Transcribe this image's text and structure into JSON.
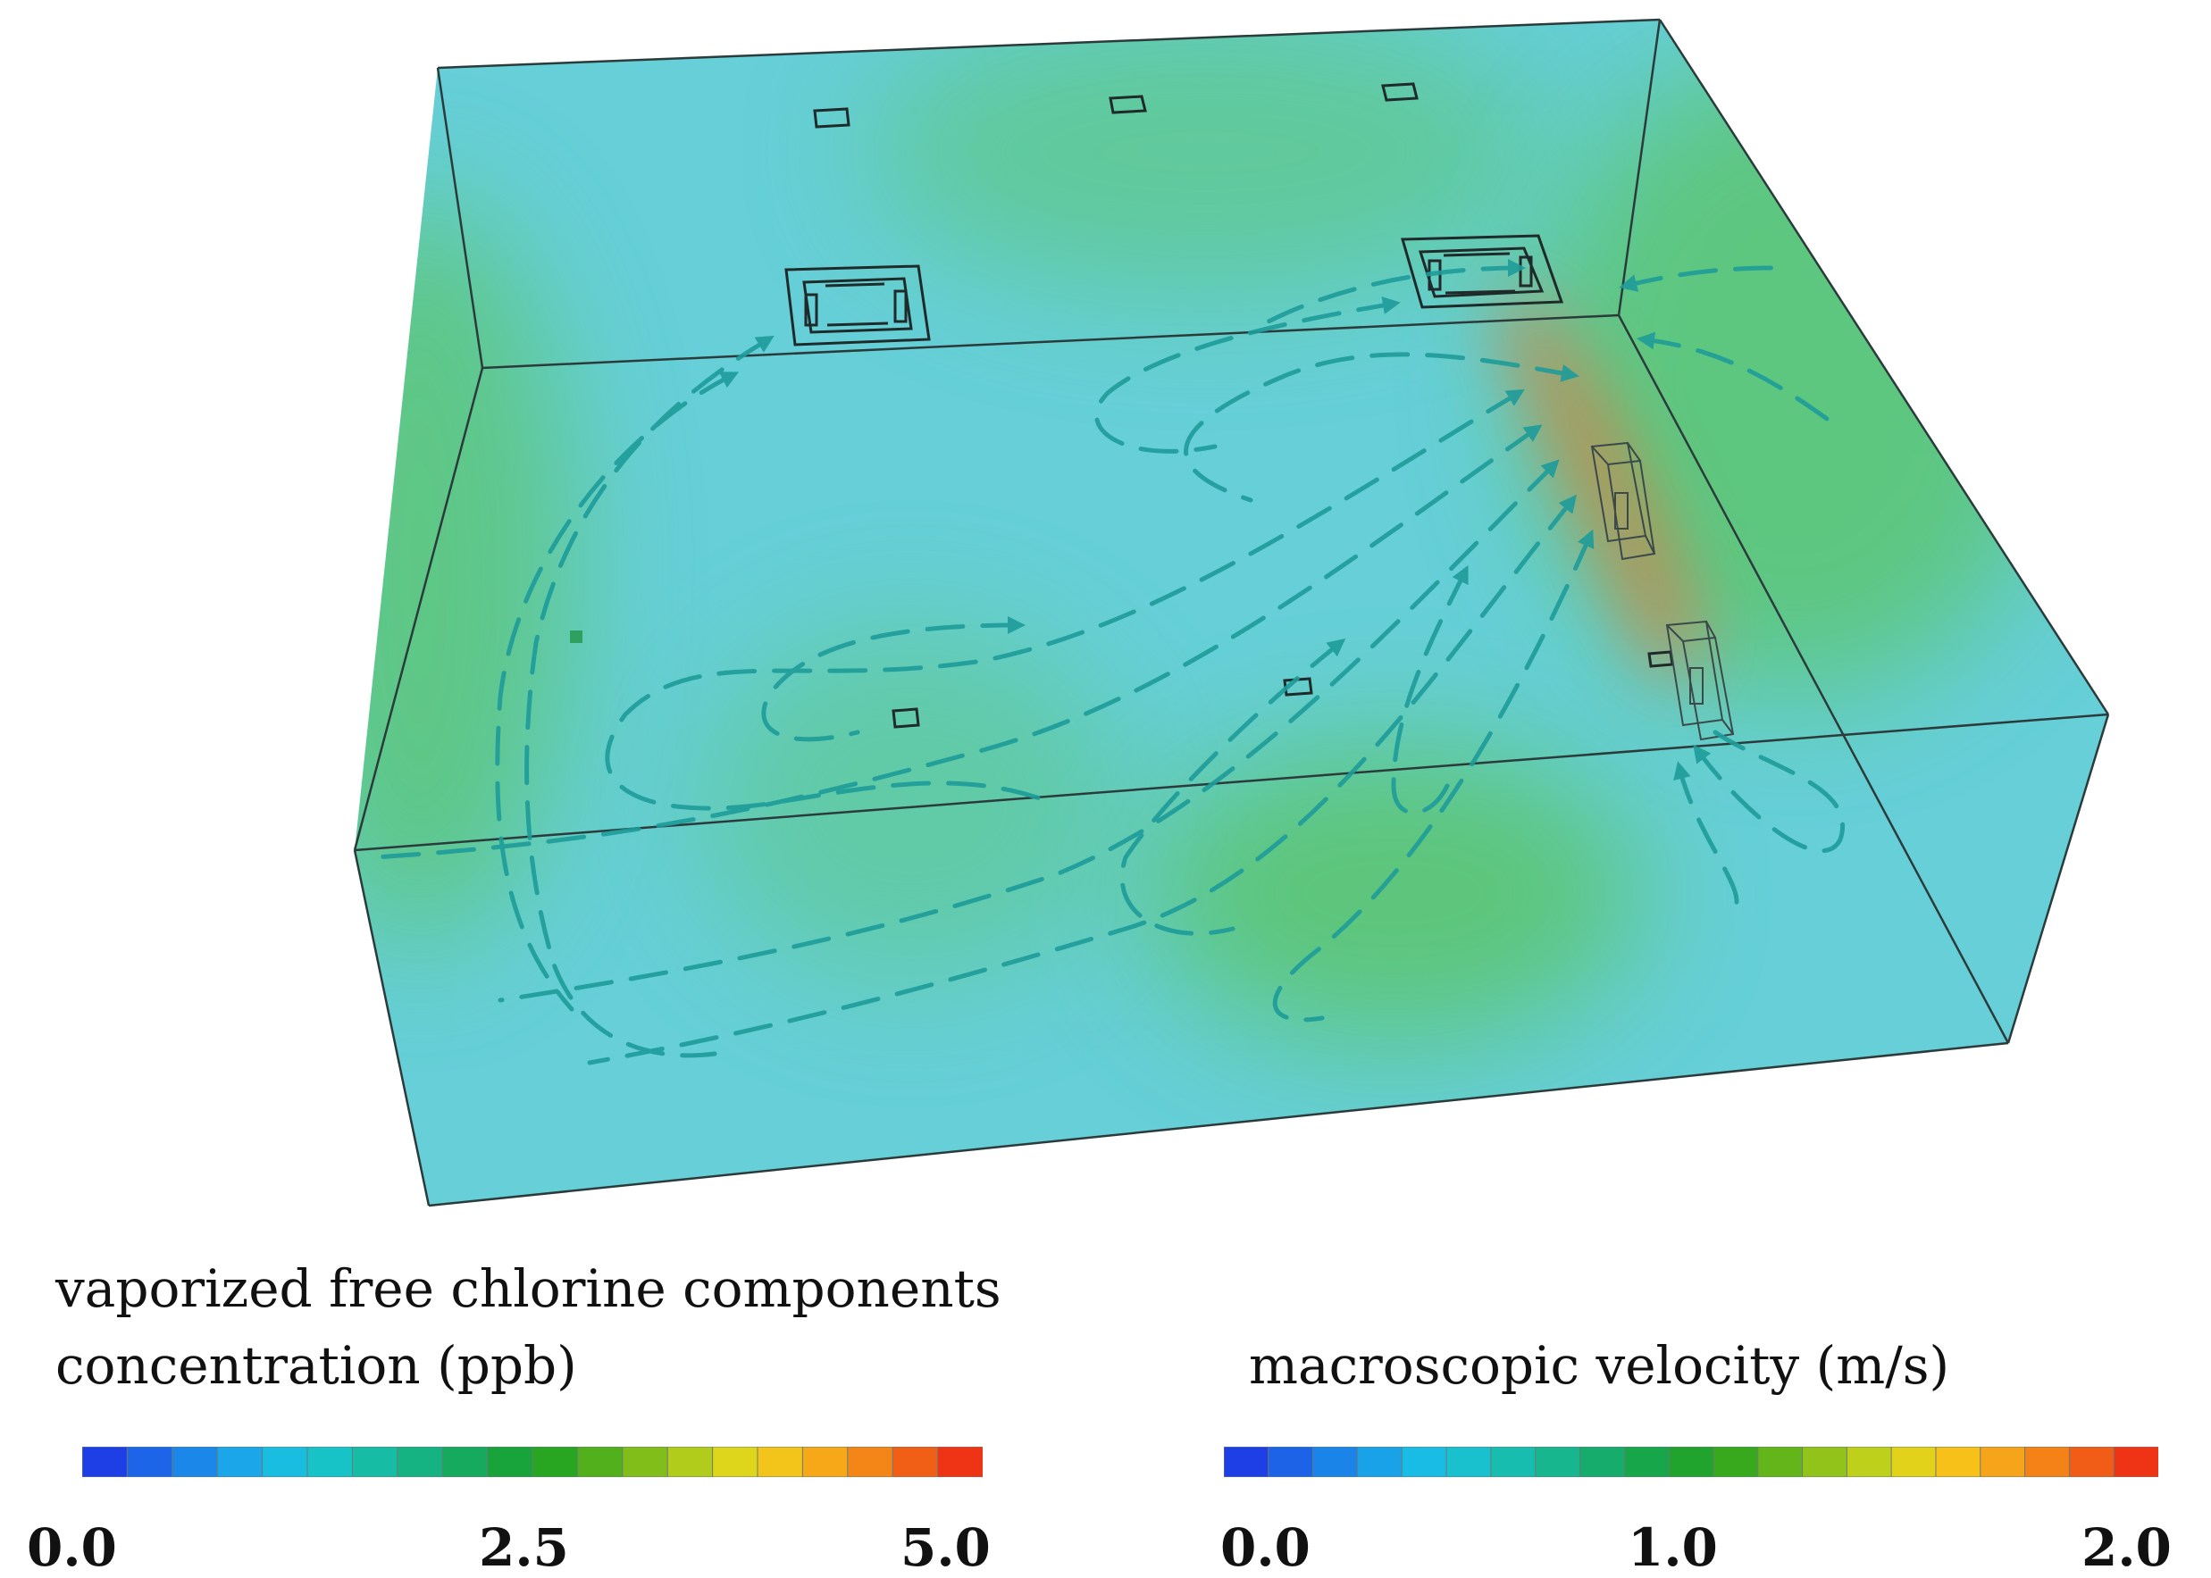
{
  "legends": [
    {
      "id": "concentration",
      "title_lines": [
        "vaporized free chlorine components",
        "concentration (ppb)"
      ],
      "min": 0.0,
      "max": 5.0,
      "segments": 20,
      "tick_labels": [
        "0.0",
        "2.5",
        "5.0"
      ]
    },
    {
      "id": "velocity",
      "title_lines": [
        "macroscopic velocity (m/s)"
      ],
      "min": 0.0,
      "max": 2.0,
      "segments": 21,
      "tick_labels": [
        "0.0",
        "1.0",
        "2.0"
      ]
    }
  ],
  "colormap": [
    "#1f3fe6",
    "#1b6fe8",
    "#1a99ea",
    "#19bce4",
    "#17c3c5",
    "#17b99a",
    "#16ad6c",
    "#17a33f",
    "#2aa51d",
    "#63b51a",
    "#a2c81a",
    "#dcd71a",
    "#f7c11a",
    "#f59a18",
    "#f26a16",
    "#ee3414"
  ],
  "room_colors": {
    "base": "#66cfd8",
    "green": "#5cc46a",
    "hot": "#e2783a",
    "arrow": "#1e9c9a",
    "edge": "#2b3b3b"
  }
}
